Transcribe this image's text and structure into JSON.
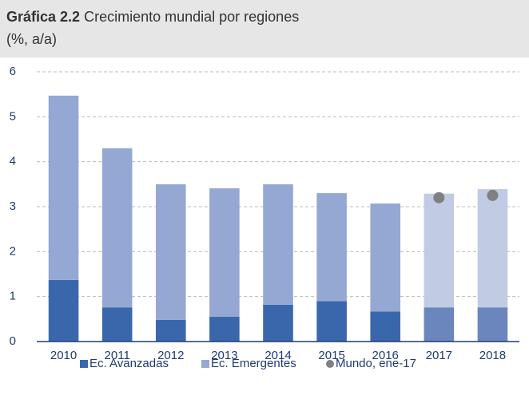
{
  "chart_data": {
    "type": "bar",
    "stacked": true,
    "title_prefix": "Gráfica 2.2",
    "title": "Crecimiento mundial por regiones",
    "subtitle": "(%, a/a)",
    "categories": [
      "2010",
      "2011",
      "2012",
      "2013",
      "2014",
      "2015",
      "2016",
      "2017",
      "2018"
    ],
    "series": [
      {
        "name": "Ec. Avanzadas",
        "color": "#3a67ac",
        "colors": [
          "#3a67ac",
          "#3a67ac",
          "#3a67ac",
          "#3a67ac",
          "#3a67ac",
          "#3a67ac",
          "#3a67ac",
          "#6b86bd",
          "#6b86bd"
        ],
        "values": [
          1.37,
          0.76,
          0.48,
          0.55,
          0.82,
          0.9,
          0.67,
          0.76,
          0.76
        ]
      },
      {
        "name": "Ec. Emergentes",
        "color": "#95a8d3",
        "colors": [
          "#95a8d3",
          "#95a8d3",
          "#95a8d3",
          "#95a8d3",
          "#95a8d3",
          "#95a8d3",
          "#95a8d3",
          "#c2cbe4",
          "#c2cbe4"
        ],
        "values": [
          4.1,
          3.54,
          3.02,
          2.86,
          2.68,
          2.4,
          2.4,
          2.53,
          2.63
        ]
      },
      {
        "name": "Mundo, ene-17",
        "type": "scatter",
        "color": "#808080",
        "values": [
          null,
          null,
          null,
          null,
          null,
          null,
          null,
          3.2,
          3.25
        ]
      }
    ],
    "ylim": [
      0,
      6
    ],
    "yticks": [
      0,
      1,
      2,
      3,
      4,
      5,
      6
    ],
    "grid": true
  }
}
